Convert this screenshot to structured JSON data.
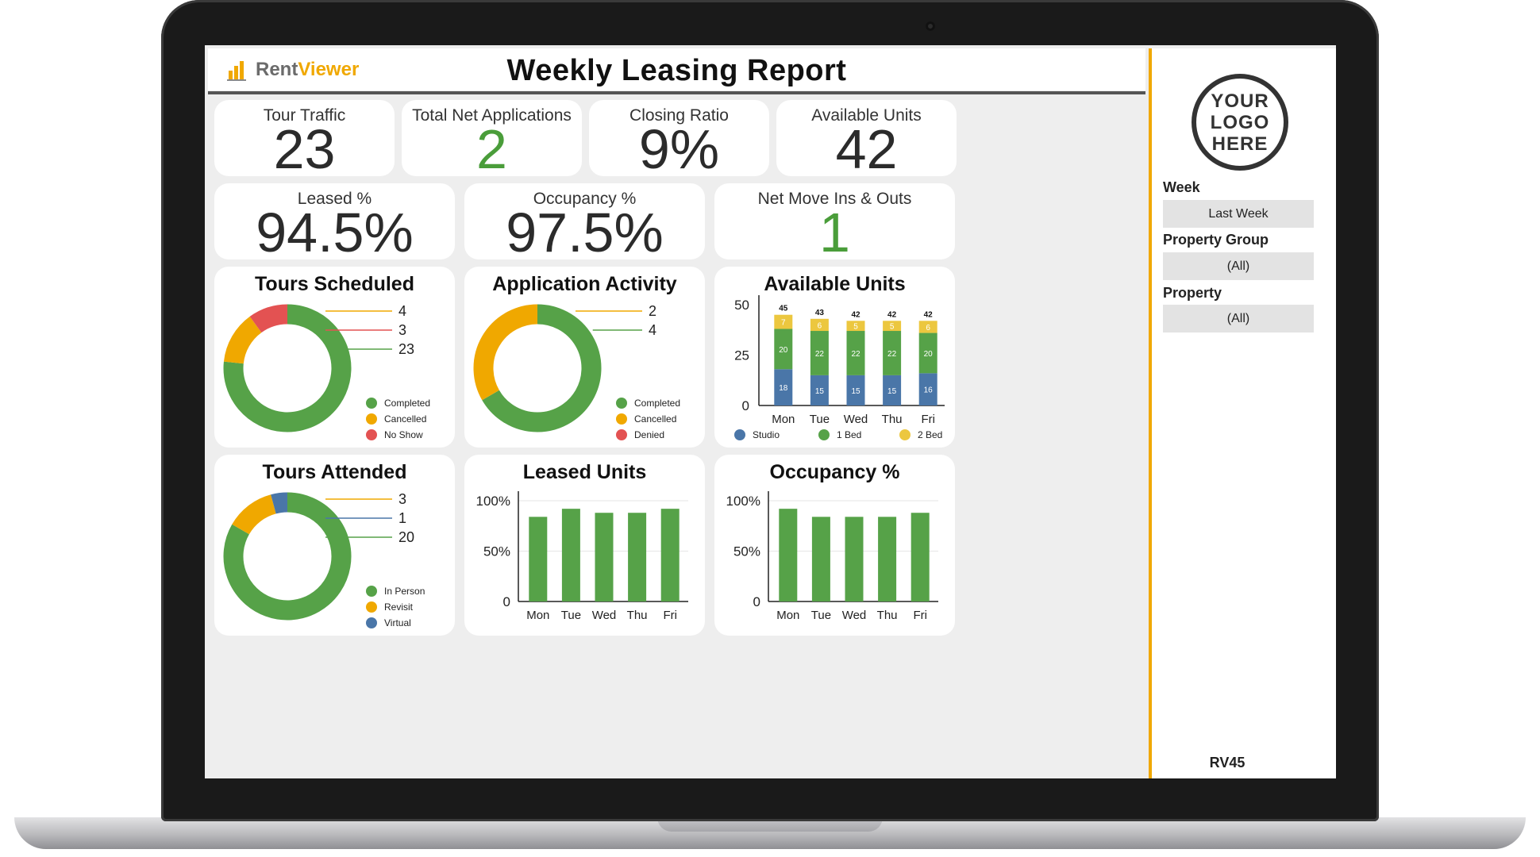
{
  "header": {
    "logo_rent": "Rent",
    "logo_viewer": "Viewer",
    "title": "Weekly Leasing Report"
  },
  "kpis": {
    "tour_traffic": {
      "label": "Tour Traffic",
      "value": "23"
    },
    "net_applications": {
      "label": "Total Net Applications",
      "value": "2"
    },
    "closing_ratio": {
      "label": "Closing Ratio",
      "value": "9%"
    },
    "available_units": {
      "label": "Available Units",
      "value": "42"
    },
    "leased_pct": {
      "label": "Leased %",
      "value": "94.5%"
    },
    "occupancy_pct": {
      "label": "Occupancy %",
      "value": "97.5%"
    },
    "net_move": {
      "label": "Net Move Ins & Outs",
      "value": "1"
    }
  },
  "sidebar": {
    "brand_logo": "YOUR LOGO HERE",
    "week_label": "Week",
    "week_value": "Last Week",
    "group_label": "Property Group",
    "group_value": "(All)",
    "property_label": "Property",
    "property_value": "(All)",
    "version": "RV45"
  },
  "colors": {
    "green": "#56a248",
    "orange": "#f0a800",
    "red": "#e35252",
    "blue": "#4a76a8",
    "yellow": "#ecc73f",
    "accent": "#f0a800"
  },
  "chart_data": [
    {
      "id": "tours_scheduled",
      "type": "pie",
      "title": "Tours Scheduled",
      "series": [
        {
          "name": "Completed",
          "value": 23,
          "color": "#56a248"
        },
        {
          "name": "Cancelled",
          "value": 4,
          "color": "#f0a800"
        },
        {
          "name": "No Show",
          "value": 3,
          "color": "#e35252"
        }
      ]
    },
    {
      "id": "application_activity",
      "type": "pie",
      "title": "Application Activity",
      "series": [
        {
          "name": "Completed",
          "value": 4,
          "color": "#56a248"
        },
        {
          "name": "Cancelled",
          "value": 2,
          "color": "#f0a800"
        },
        {
          "name": "Denied",
          "value": 0,
          "color": "#e35252"
        }
      ]
    },
    {
      "id": "available_units_chart",
      "type": "bar",
      "stacked": true,
      "title": "Available Units",
      "categories": [
        "Mon",
        "Tue",
        "Wed",
        "Thu",
        "Fri"
      ],
      "ylim": [
        0,
        50
      ],
      "yticks": [
        0,
        25,
        50
      ],
      "totals": [
        45,
        43,
        42,
        42,
        42
      ],
      "series": [
        {
          "name": "Studio",
          "values": [
            18,
            15,
            15,
            15,
            16
          ],
          "color": "#4a76a8"
        },
        {
          "name": "1 Bed",
          "values": [
            20,
            22,
            22,
            22,
            20
          ],
          "color": "#56a248"
        },
        {
          "name": "2 Bed",
          "values": [
            7,
            6,
            5,
            5,
            6
          ],
          "color": "#ecc73f"
        }
      ]
    },
    {
      "id": "tours_attended",
      "type": "pie",
      "title": "Tours Attended",
      "series": [
        {
          "name": "In Person",
          "value": 20,
          "color": "#56a248"
        },
        {
          "name": "Revisit",
          "value": 3,
          "color": "#f0a800"
        },
        {
          "name": "Virtual",
          "value": 1,
          "color": "#4a76a8"
        }
      ]
    },
    {
      "id": "leased_units",
      "type": "bar",
      "title": "Leased Units",
      "categories": [
        "Mon",
        "Tue",
        "Wed",
        "Thu",
        "Fri"
      ],
      "ylim": [
        0,
        100
      ],
      "ytick_labels": [
        "0",
        "50%",
        "100%"
      ],
      "values": [
        84,
        92,
        88,
        88,
        92
      ],
      "color": "#56a248"
    },
    {
      "id": "occupancy_chart",
      "type": "bar",
      "title": "Occupancy %",
      "categories": [
        "Mon",
        "Tue",
        "Wed",
        "Thu",
        "Fri"
      ],
      "ylim": [
        0,
        100
      ],
      "ytick_labels": [
        "0",
        "50%",
        "100%"
      ],
      "values": [
        92,
        84,
        84,
        84,
        88
      ],
      "color": "#56a248"
    }
  ]
}
